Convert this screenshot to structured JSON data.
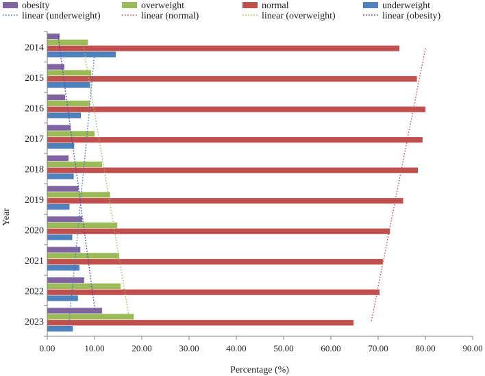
{
  "chart_data": {
    "type": "bar",
    "orientation": "horizontal",
    "title": "",
    "xlabel": "Percentage (%)",
    "ylabel": "Year",
    "xlim": [
      0,
      90
    ],
    "xticks": [
      "0.00",
      "10.00",
      "20.00",
      "30.00",
      "40.00",
      "50.00",
      "60.00",
      "70.00",
      "80.00",
      "90.00"
    ],
    "categories": [
      "2014",
      "2015",
      "2016",
      "2017",
      "2018",
      "2019",
      "2020",
      "2021",
      "2022",
      "2023"
    ],
    "grid": false,
    "legend_position": "top",
    "series": [
      {
        "name": "obesity",
        "color": "#8064a2",
        "values": [
          2.6,
          3.6,
          3.8,
          4.9,
          4.5,
          6.6,
          7.4,
          7.0,
          7.8,
          11.6
        ]
      },
      {
        "name": "overweight",
        "color": "#9bbb59",
        "values": [
          8.6,
          9.3,
          9.0,
          10.0,
          11.6,
          13.3,
          14.8,
          15.2,
          15.5,
          18.3
        ]
      },
      {
        "name": "normal",
        "color": "#c0504d",
        "values": [
          74.5,
          78.2,
          80.0,
          79.4,
          78.4,
          75.3,
          72.5,
          71.0,
          70.3,
          64.8
        ]
      },
      {
        "name": "underweight",
        "color": "#4f81bd",
        "values": [
          14.5,
          9.1,
          7.1,
          5.7,
          5.6,
          4.7,
          5.3,
          6.8,
          6.5,
          5.4
        ]
      }
    ],
    "trendlines": [
      {
        "name": "linear",
        "qualifier": "(underweight)",
        "color": "#4472c4",
        "from": 10.0,
        "to": 4.5
      },
      {
        "name": "linear",
        "qualifier": "(normal)",
        "color": "#c0504d",
        "from": 80.0,
        "to": 68.5
      },
      {
        "name": "linear",
        "qualifier": "(overweight)",
        "color": "#9bbb59",
        "from": 7.5,
        "to": 17.3
      },
      {
        "name": "linear",
        "qualifier": "(obesity)",
        "color": "#4040b0",
        "from": 2.3,
        "to": 10.1
      }
    ]
  }
}
